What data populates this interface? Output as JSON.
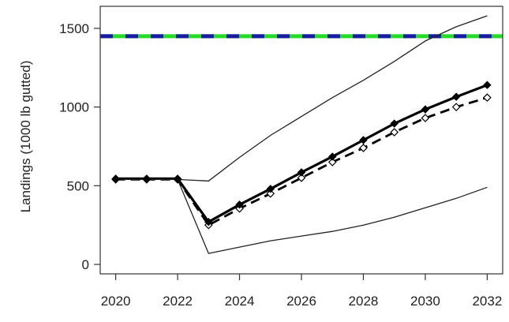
{
  "chart_data": {
    "type": "line",
    "title": "",
    "xlabel": "",
    "ylabel": "Landings (1000 lb gutted)",
    "xlim": [
      2019.5,
      2032.5
    ],
    "ylim": [
      -60,
      1640
    ],
    "x_ticks": [
      2020,
      2022,
      2024,
      2026,
      2028,
      2030,
      2032
    ],
    "y_ticks": [
      0,
      500,
      1000,
      1500
    ],
    "reference_line": {
      "value": 1450,
      "colors": [
        "#22dd22",
        "#1a1aa8"
      ]
    },
    "x": [
      2020,
      2021,
      2022,
      2023,
      2024,
      2025,
      2026,
      2027,
      2028,
      2029,
      2030,
      2031,
      2032
    ],
    "series": [
      {
        "style": "solid-thick-filled-diamond",
        "color": "#000000",
        "values": [
          545,
          545,
          545,
          270,
          380,
          480,
          585,
          685,
          790,
          895,
          985,
          1065,
          1140
        ]
      },
      {
        "style": "dashed-open-diamond",
        "color": "#000000",
        "values": [
          540,
          540,
          540,
          250,
          355,
          450,
          550,
          650,
          740,
          840,
          930,
          1000,
          1060
        ]
      },
      {
        "style": "thin-upper-band",
        "color": "#222222",
        "values": [
          540,
          540,
          540,
          530,
          680,
          820,
          940,
          1060,
          1170,
          1290,
          1420,
          1510,
          1580
        ]
      },
      {
        "style": "thin-lower-band",
        "color": "#222222",
        "values": [
          540,
          540,
          540,
          70,
          110,
          150,
          180,
          210,
          250,
          300,
          360,
          420,
          490
        ]
      }
    ]
  }
}
